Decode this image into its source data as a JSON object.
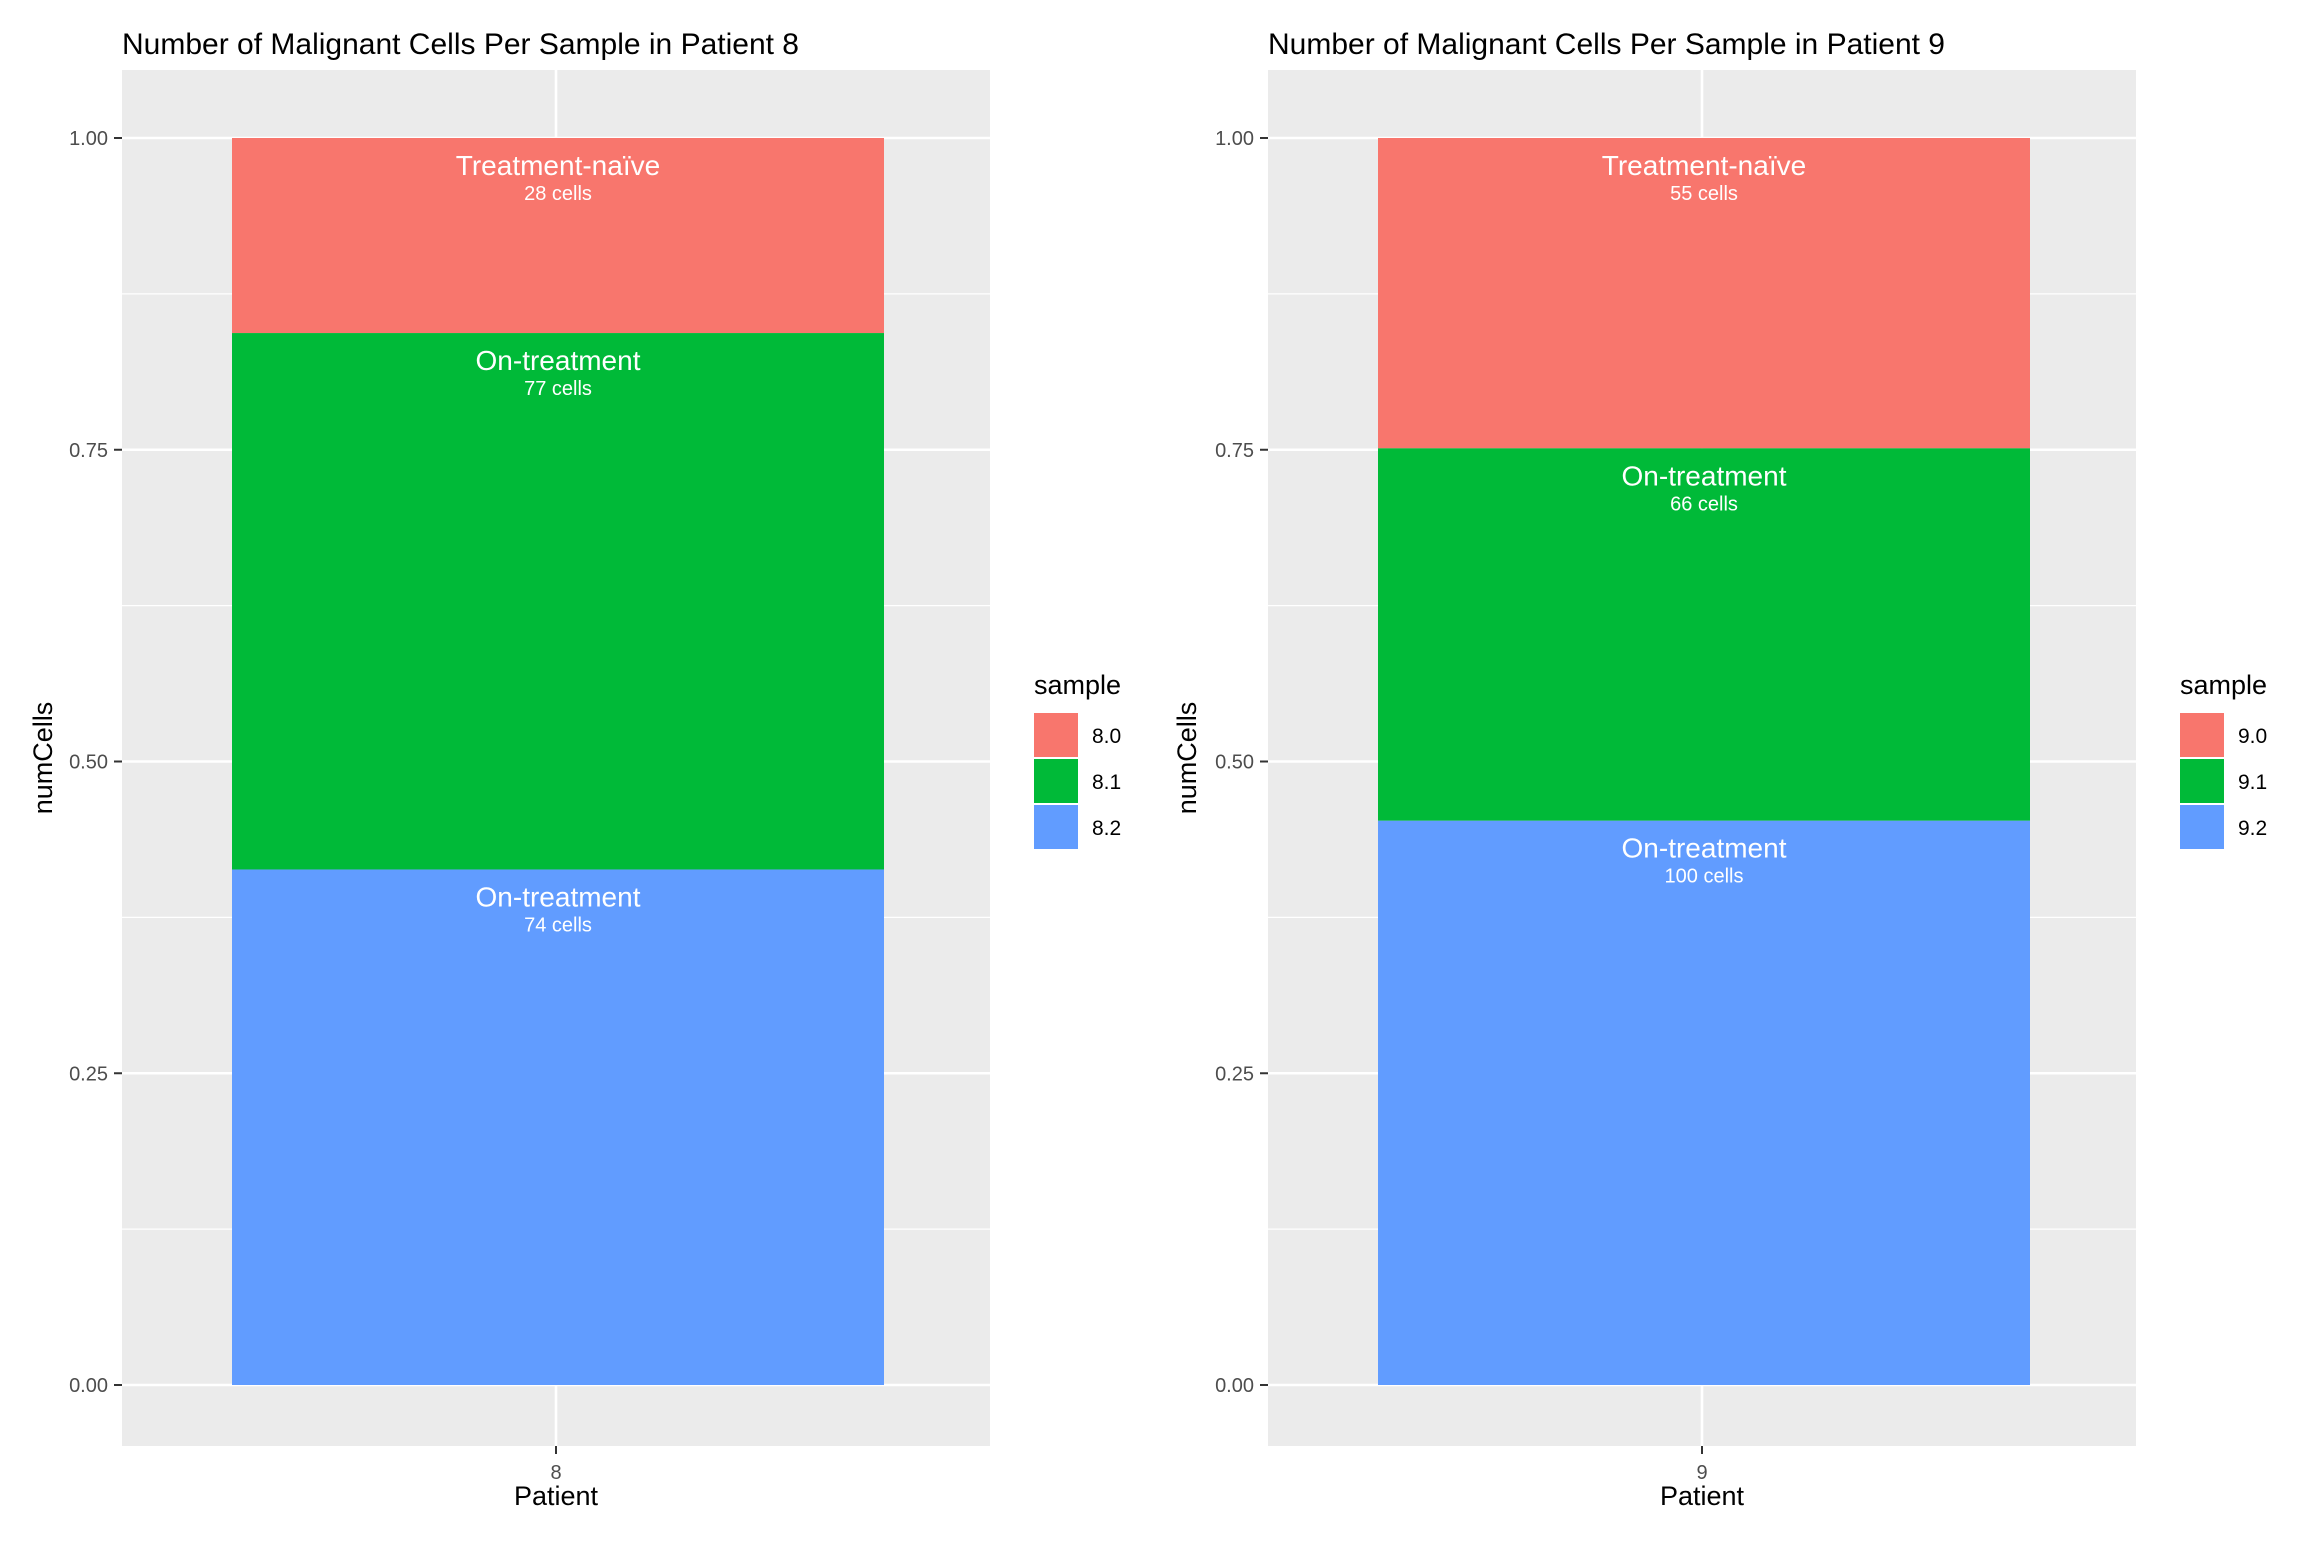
{
  "chart_data": [
    {
      "type": "bar",
      "stacked": true,
      "normalized": true,
      "title": "Number of Malignant Cells Per Sample in Patient 8",
      "xlabel": "Patient",
      "ylabel": "numCells",
      "categories": [
        "8"
      ],
      "ylim": [
        0,
        1
      ],
      "yticks": [
        "0.00",
        "0.25",
        "0.50",
        "0.75",
        "1.00"
      ],
      "grid": true,
      "legend": {
        "title": "sample",
        "placement": "right"
      },
      "series": [
        {
          "name": "8.0",
          "label": "Treatment-naïve",
          "count_label": "28 cells",
          "cells": 28,
          "color": "#F8766D"
        },
        {
          "name": "8.1",
          "label": "On-treatment",
          "count_label": "77 cells",
          "cells": 77,
          "color": "#00BA38"
        },
        {
          "name": "8.2",
          "label": "On-treatment",
          "count_label": "74 cells",
          "cells": 74,
          "color": "#619CFF"
        }
      ]
    },
    {
      "type": "bar",
      "stacked": true,
      "normalized": true,
      "title": "Number of Malignant Cells Per Sample in Patient 9",
      "xlabel": "Patient",
      "ylabel": "numCells",
      "categories": [
        "9"
      ],
      "ylim": [
        0,
        1
      ],
      "yticks": [
        "0.00",
        "0.25",
        "0.50",
        "0.75",
        "1.00"
      ],
      "grid": true,
      "legend": {
        "title": "sample",
        "placement": "right"
      },
      "series": [
        {
          "name": "9.0",
          "label": "Treatment-naïve",
          "count_label": "55 cells",
          "cells": 55,
          "color": "#F8766D"
        },
        {
          "name": "9.1",
          "label": "On-treatment",
          "count_label": "66 cells",
          "cells": 66,
          "color": "#00BA38"
        },
        {
          "name": "9.2",
          "label": "On-treatment",
          "count_label": "100 cells",
          "cells": 100,
          "color": "#619CFF"
        }
      ]
    }
  ],
  "colors": {
    "panel_bg": "#EBEBEB",
    "grid": "#FFFFFF",
    "text": "#000000",
    "axis_text": "#4D4D4D",
    "bar_text": "#FFFFFF"
  }
}
